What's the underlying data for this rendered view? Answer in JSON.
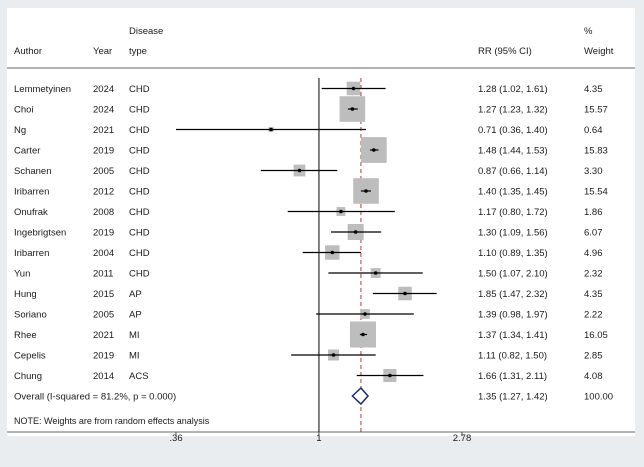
{
  "chart_data": {
    "type": "forest",
    "headers": {
      "author": "Author",
      "year": "Year",
      "disease_top": "Disease",
      "disease_bottom": "type",
      "rr": "RR (95% CI)",
      "weight_top": "%",
      "weight_bottom": "Weight"
    },
    "studies": [
      {
        "author": "Lemmetyinen",
        "year": "2024",
        "type": "CHD",
        "rr": 1.28,
        "lo": 1.02,
        "hi": 1.61,
        "rr_text": "1.28 (1.02, 1.61)",
        "weight": 4.35,
        "weight_text": "4.35"
      },
      {
        "author": "Choi",
        "year": "2024",
        "type": "CHD",
        "rr": 1.27,
        "lo": 1.23,
        "hi": 1.32,
        "rr_text": "1.27 (1.23, 1.32)",
        "weight": 15.57,
        "weight_text": "15.57"
      },
      {
        "author": "Ng",
        "year": "2021",
        "type": "CHD",
        "rr": 0.71,
        "lo": 0.36,
        "hi": 1.4,
        "rr_text": "0.71 (0.36, 1.40)",
        "weight": 0.64,
        "weight_text": "0.64"
      },
      {
        "author": "Carter",
        "year": "2019",
        "type": "CHD",
        "rr": 1.48,
        "lo": 1.44,
        "hi": 1.53,
        "rr_text": "1.48 (1.44, 1.53)",
        "weight": 15.83,
        "weight_text": "15.83"
      },
      {
        "author": "Schanen",
        "year": "2005",
        "type": "CHD",
        "rr": 0.87,
        "lo": 0.66,
        "hi": 1.14,
        "rr_text": "0.87 (0.66, 1.14)",
        "weight": 3.3,
        "weight_text": "3.30"
      },
      {
        "author": "Iribarren",
        "year": "2012",
        "type": "CHD",
        "rr": 1.4,
        "lo": 1.35,
        "hi": 1.45,
        "rr_text": "1.40 (1.35, 1.45)",
        "weight": 15.54,
        "weight_text": "15.54"
      },
      {
        "author": "Onufrak",
        "year": "2008",
        "type": "CHD",
        "rr": 1.17,
        "lo": 0.8,
        "hi": 1.72,
        "rr_text": "1.17 (0.80, 1.72)",
        "weight": 1.86,
        "weight_text": "1.86"
      },
      {
        "author": "Ingebrigtsen",
        "year": "2019",
        "type": "CHD",
        "rr": 1.3,
        "lo": 1.09,
        "hi": 1.56,
        "rr_text": "1.30 (1.09, 1.56)",
        "weight": 6.07,
        "weight_text": "6.07"
      },
      {
        "author": "Iribarren",
        "year": "2004",
        "type": "CHD",
        "rr": 1.1,
        "lo": 0.89,
        "hi": 1.35,
        "rr_text": "1.10 (0.89, 1.35)",
        "weight": 4.96,
        "weight_text": "4.96"
      },
      {
        "author": "Yun",
        "year": "2011",
        "type": "CHD",
        "rr": 1.5,
        "lo": 1.07,
        "hi": 2.1,
        "rr_text": "1.50 (1.07, 2.10)",
        "weight": 2.32,
        "weight_text": "2.32"
      },
      {
        "author": "Hung",
        "year": "2015",
        "type": "AP",
        "rr": 1.85,
        "lo": 1.47,
        "hi": 2.32,
        "rr_text": "1.85 (1.47, 2.32)",
        "weight": 4.35,
        "weight_text": "4.35"
      },
      {
        "author": "Soriano",
        "year": "2005",
        "type": "AP",
        "rr": 1.39,
        "lo": 0.98,
        "hi": 1.97,
        "rr_text": "1.39 (0.98, 1.97)",
        "weight": 2.22,
        "weight_text": "2.22"
      },
      {
        "author": "Rhee",
        "year": "2021",
        "type": "MI",
        "rr": 1.37,
        "lo": 1.34,
        "hi": 1.41,
        "rr_text": "1.37 (1.34, 1.41)",
        "weight": 16.05,
        "weight_text": "16.05"
      },
      {
        "author": "Cepelis",
        "year": "2019",
        "type": "MI",
        "rr": 1.11,
        "lo": 0.82,
        "hi": 1.5,
        "rr_text": "1.11 (0.82, 1.50)",
        "weight": 2.85,
        "weight_text": "2.85"
      },
      {
        "author": "Chung",
        "year": "2014",
        "type": "ACS",
        "rr": 1.66,
        "lo": 1.31,
        "hi": 2.11,
        "rr_text": "1.66 (1.31, 2.11)",
        "weight": 4.08,
        "weight_text": "4.08"
      }
    ],
    "overall": {
      "label": "Overall  (I-squared = 81.2%, p = 0.000)",
      "rr": 1.35,
      "lo": 1.27,
      "hi": 1.42,
      "rr_text": "1.35 (1.27, 1.42)",
      "weight_text": "100.00"
    },
    "note": "NOTE: Weights are from random effects analysis",
    "x_axis": {
      "scale": "log",
      "range": [
        0.36,
        2.78
      ],
      "ticks": [
        {
          "value": 0.36,
          "label": ".36"
        },
        {
          "value": 1,
          "label": "1"
        },
        {
          "value": 2.78,
          "label": "2.78"
        }
      ],
      "null_value": 1
    },
    "colors": {
      "background": "#e9edf0",
      "panel": "#ffffff",
      "weight_box": "#bdbdbd",
      "diamond": "#1f2a6b",
      "overall_line": "#c0392b",
      "text": "#1a1a1a"
    }
  }
}
